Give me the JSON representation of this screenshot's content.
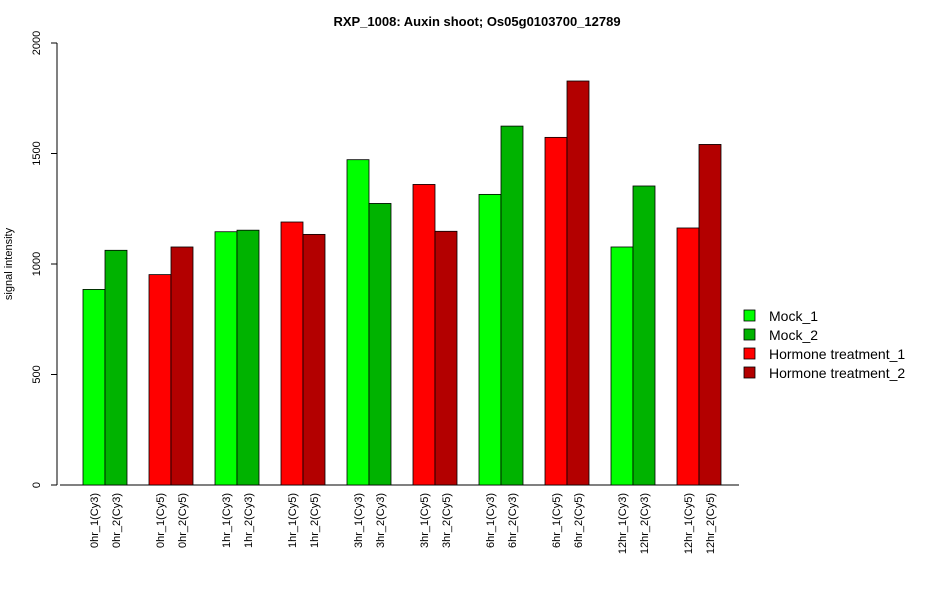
{
  "chart_data": {
    "type": "bar",
    "title": "RXP_1008: Auxin shoot; Os05g0103700_12789",
    "ylabel": "signal intensity",
    "xlabel": "",
    "ylim": [
      0,
      2000
    ],
    "yticks": [
      0,
      500,
      1000,
      1500,
      2000
    ],
    "grid": false,
    "legend_position": "right",
    "legend": [
      {
        "name": "Mock_1",
        "color": "#00ff00"
      },
      {
        "name": "Mock_2",
        "color": "#00b300"
      },
      {
        "name": "Hormone treatment_1",
        "color": "#ff0000"
      },
      {
        "name": "Hormone treatment_2",
        "color": "#b30000"
      }
    ],
    "bars": [
      {
        "label": "0hr_1(Cy3)",
        "value": 885,
        "color": "#00ff00"
      },
      {
        "label": "0hr_2(Cy3)",
        "value": 1062,
        "color": "#00b300"
      },
      {
        "label": "0hr_1(Cy5)",
        "value": 952,
        "color": "#ff0000"
      },
      {
        "label": "0hr_2(Cy5)",
        "value": 1077,
        "color": "#b30000"
      },
      {
        "label": "1hr_1(Cy3)",
        "value": 1146,
        "color": "#00ff00"
      },
      {
        "label": "1hr_2(Cy3)",
        "value": 1153,
        "color": "#00b300"
      },
      {
        "label": "1hr_1(Cy5)",
        "value": 1190,
        "color": "#ff0000"
      },
      {
        "label": "1hr_2(Cy5)",
        "value": 1134,
        "color": "#b30000"
      },
      {
        "label": "3hr_1(Cy3)",
        "value": 1472,
        "color": "#00ff00"
      },
      {
        "label": "3hr_2(Cy3)",
        "value": 1274,
        "color": "#00b300"
      },
      {
        "label": "3hr_1(Cy5)",
        "value": 1360,
        "color": "#ff0000"
      },
      {
        "label": "3hr_2(Cy5)",
        "value": 1148,
        "color": "#b30000"
      },
      {
        "label": "6hr_1(Cy3)",
        "value": 1315,
        "color": "#00ff00"
      },
      {
        "label": "6hr_2(Cy3)",
        "value": 1624,
        "color": "#00b300"
      },
      {
        "label": "6hr_1(Cy5)",
        "value": 1573,
        "color": "#ff0000"
      },
      {
        "label": "6hr_2(Cy5)",
        "value": 1828,
        "color": "#b30000"
      },
      {
        "label": "12hr_1(Cy3)",
        "value": 1077,
        "color": "#00ff00"
      },
      {
        "label": "12hr_2(Cy3)",
        "value": 1353,
        "color": "#00b300"
      },
      {
        "label": "12hr_1(Cy5)",
        "value": 1163,
        "color": "#ff0000"
      },
      {
        "label": "12hr_2(Cy5)",
        "value": 1541,
        "color": "#b30000"
      }
    ]
  }
}
